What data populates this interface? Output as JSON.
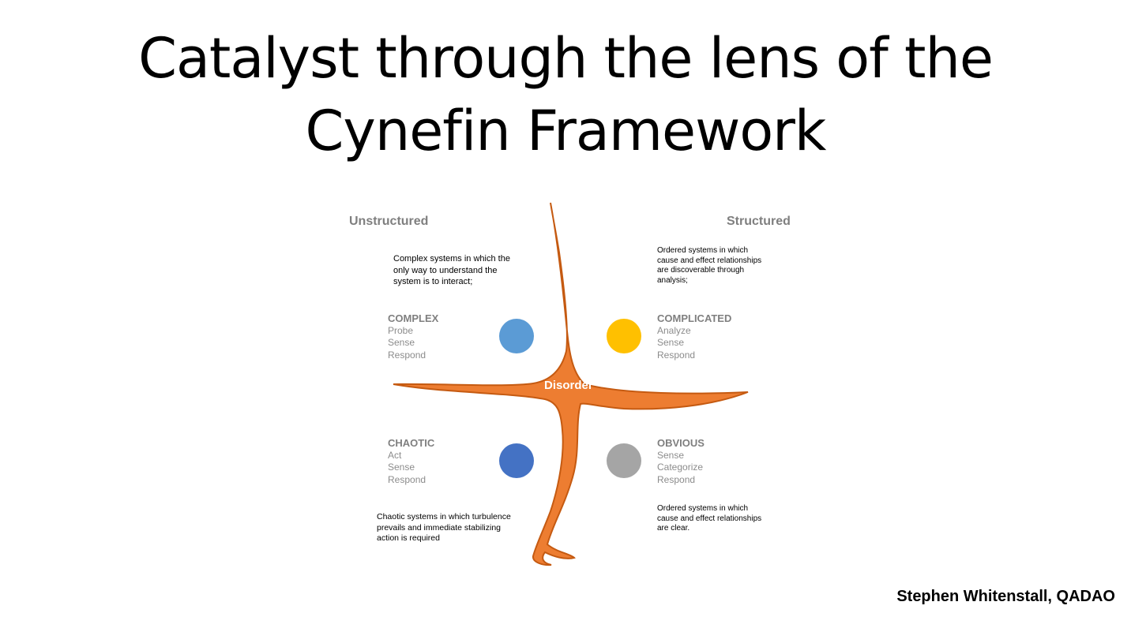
{
  "title": {
    "line1": "Catalyst through the lens of the",
    "line2": "Cynefin Framework"
  },
  "axes": {
    "left": "Unstructured",
    "right": "Structured"
  },
  "center": {
    "label": "Disorder",
    "color": "#ed7d31",
    "stroke": "#c55a11"
  },
  "domains": {
    "complex": {
      "name": "COMPLEX",
      "steps": [
        "Probe",
        "Sense",
        "Respond"
      ],
      "color": "#5b9bd5",
      "description": "Complex systems in which the only way to understand the system is to interact;"
    },
    "complicated": {
      "name": "COMPLICATED",
      "steps": [
        "Analyze",
        "Sense",
        "Respond"
      ],
      "color": "#ffc000",
      "description": "Ordered systems in which cause and effect relationships are discoverable through analysis;"
    },
    "chaotic": {
      "name": "CHAOTIC",
      "steps": [
        "Act",
        "Sense",
        "Respond"
      ],
      "color": "#4472c4",
      "description": "Chaotic systems in which turbulence prevails and immediate stabilizing action is required"
    },
    "obvious": {
      "name": "OBVIOUS",
      "steps": [
        "Sense",
        "Categorize",
        "Respond"
      ],
      "color": "#a5a5a5",
      "description": "Ordered systems in which cause and effect relationships are clear."
    }
  },
  "author": "Stephen Whitenstall, QADAO"
}
